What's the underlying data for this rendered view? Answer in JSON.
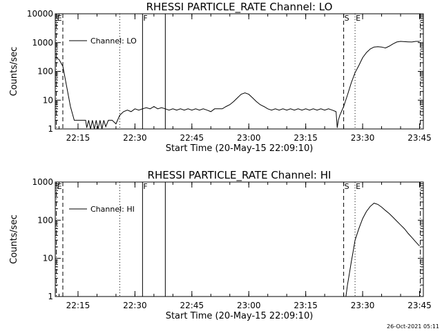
{
  "chart_data": [
    {
      "type": "line",
      "title": "RHESSI PARTICLE_RATE Channel: LO",
      "xlabel": "Start Time (20-May-15 22:09:10)",
      "ylabel": "Counts/sec",
      "y_scale": "log",
      "xlim": [
        0,
        97
      ],
      "ylim": [
        1,
        10000
      ],
      "x_ticks": [
        6,
        21,
        36,
        51,
        66,
        81,
        96
      ],
      "x_tick_labels": [
        "22:15",
        "22:30",
        "22:45",
        "23:00",
        "23:15",
        "23:30",
        "23:45"
      ],
      "y_ticks": [
        1,
        10,
        100,
        1000,
        10000
      ],
      "y_tick_labels": [
        "1",
        "10",
        "100",
        "1000",
        "10000"
      ],
      "legend": {
        "position": "top-left",
        "entries": [
          "Channel: LO"
        ]
      },
      "markers": [
        {
          "x": 0.3,
          "label": "E",
          "style": "dashdot"
        },
        {
          "x": 2,
          "label": "",
          "style": "dashed"
        },
        {
          "x": 17,
          "label": "",
          "style": "dotted"
        },
        {
          "x": 23,
          "label": "F",
          "style": "solid"
        },
        {
          "x": 29,
          "label": "",
          "style": "solid"
        },
        {
          "x": 76,
          "label": "S",
          "style": "dashed"
        },
        {
          "x": 79,
          "label": "E",
          "style": "dotted"
        },
        {
          "x": 96.2,
          "label": "",
          "style": "dashdot"
        }
      ],
      "series": [
        {
          "name": "Channel: LO",
          "points": [
            [
              0,
              300
            ],
            [
              1,
              260
            ],
            [
              2,
              150
            ],
            [
              3,
              30
            ],
            [
              4,
              6
            ],
            [
              5,
              2
            ],
            [
              6,
              2
            ],
            [
              8,
              2
            ],
            [
              8.3,
              1.1
            ],
            [
              8.8,
              2
            ],
            [
              9.3,
              1
            ],
            [
              9.8,
              2
            ],
            [
              10.3,
              1
            ],
            [
              10.8,
              2
            ],
            [
              11.3,
              1
            ],
            [
              11.8,
              2
            ],
            [
              12.3,
              1
            ],
            [
              12.8,
              2
            ],
            [
              13.3,
              1.2
            ],
            [
              14,
              2
            ],
            [
              15,
              2
            ],
            [
              16,
              1.5
            ],
            [
              17,
              3
            ],
            [
              18,
              4
            ],
            [
              19,
              4.5
            ],
            [
              20,
              4
            ],
            [
              21,
              5
            ],
            [
              22,
              4.5
            ],
            [
              23,
              5
            ],
            [
              24,
              5.5
            ],
            [
              25,
              5
            ],
            [
              26,
              6
            ],
            [
              27,
              5
            ],
            [
              28,
              5.5
            ],
            [
              29,
              5
            ],
            [
              30,
              4.5
            ],
            [
              31,
              5
            ],
            [
              32,
              4.5
            ],
            [
              33,
              5
            ],
            [
              34,
              4.5
            ],
            [
              35,
              5
            ],
            [
              36,
              4.5
            ],
            [
              37,
              5
            ],
            [
              38,
              4.5
            ],
            [
              39,
              5
            ],
            [
              40,
              4.5
            ],
            [
              41,
              4
            ],
            [
              42,
              5
            ],
            [
              43,
              5
            ],
            [
              44,
              5
            ],
            [
              45,
              6
            ],
            [
              46,
              7
            ],
            [
              47,
              9
            ],
            [
              48,
              12
            ],
            [
              49,
              16
            ],
            [
              50,
              18
            ],
            [
              51,
              16
            ],
            [
              52,
              12
            ],
            [
              53,
              9
            ],
            [
              54,
              7
            ],
            [
              55,
              6
            ],
            [
              56,
              5
            ],
            [
              57,
              4.5
            ],
            [
              58,
              5
            ],
            [
              59,
              4.5
            ],
            [
              60,
              5
            ],
            [
              61,
              4.5
            ],
            [
              62,
              5
            ],
            [
              63,
              4.5
            ],
            [
              64,
              5
            ],
            [
              65,
              4.5
            ],
            [
              66,
              5
            ],
            [
              67,
              4.5
            ],
            [
              68,
              5
            ],
            [
              69,
              4.5
            ],
            [
              70,
              5
            ],
            [
              71,
              4.5
            ],
            [
              72,
              5
            ],
            [
              73,
              4.5
            ],
            [
              74,
              4
            ],
            [
              74.3,
              1.1
            ],
            [
              74.6,
              2
            ],
            [
              75,
              3
            ],
            [
              76,
              6
            ],
            [
              77,
              15
            ],
            [
              78,
              40
            ],
            [
              79,
              90
            ],
            [
              80,
              160
            ],
            [
              81,
              300
            ],
            [
              82,
              450
            ],
            [
              83,
              600
            ],
            [
              84,
              700
            ],
            [
              85,
              720
            ],
            [
              86,
              700
            ],
            [
              87,
              650
            ],
            [
              88,
              750
            ],
            [
              89,
              900
            ],
            [
              90,
              1050
            ],
            [
              91,
              1100
            ],
            [
              92,
              1080
            ],
            [
              93,
              1060
            ],
            [
              94,
              1050
            ],
            [
              95,
              1100
            ],
            [
              96,
              1100
            ]
          ]
        }
      ]
    },
    {
      "type": "line",
      "title": "RHESSI PARTICLE_RATE Channel: HI",
      "xlabel": "Start Time (20-May-15 22:09:10)",
      "ylabel": "Counts/sec",
      "y_scale": "log",
      "xlim": [
        0,
        97
      ],
      "ylim": [
        1,
        1000
      ],
      "x_ticks": [
        6,
        21,
        36,
        51,
        66,
        81,
        96
      ],
      "x_tick_labels": [
        "22:15",
        "22:30",
        "22:45",
        "23:00",
        "23:15",
        "23:30",
        "23:45"
      ],
      "y_ticks": [
        1,
        10,
        100,
        1000
      ],
      "y_tick_labels": [
        "1",
        "10",
        "100",
        "1000"
      ],
      "legend": {
        "position": "top-left",
        "entries": [
          "Channel: HI"
        ]
      },
      "markers": [
        {
          "x": 0.3,
          "label": "E",
          "style": "dashdot"
        },
        {
          "x": 2,
          "label": "",
          "style": "dashed"
        },
        {
          "x": 17,
          "label": "",
          "style": "dotted"
        },
        {
          "x": 23,
          "label": "F",
          "style": "solid"
        },
        {
          "x": 29,
          "label": "",
          "style": "solid"
        },
        {
          "x": 76,
          "label": "S",
          "style": "dashed"
        },
        {
          "x": 79,
          "label": "E",
          "style": "dotted"
        },
        {
          "x": 96.2,
          "label": "",
          "style": "dashdot"
        }
      ],
      "series": [
        {
          "name": "Channel: HI",
          "points": [
            [
              76.6,
              1
            ],
            [
              77,
              2
            ],
            [
              77.5,
              4
            ],
            [
              78,
              8
            ],
            [
              78.5,
              15
            ],
            [
              79,
              30
            ],
            [
              80,
              60
            ],
            [
              81,
              110
            ],
            [
              82,
              170
            ],
            [
              83,
              230
            ],
            [
              84,
              280
            ],
            [
              85,
              260
            ],
            [
              86,
              220
            ],
            [
              87,
              180
            ],
            [
              88,
              150
            ],
            [
              89,
              120
            ],
            [
              90,
              95
            ],
            [
              91,
              75
            ],
            [
              92,
              60
            ],
            [
              93,
              45
            ],
            [
              94,
              35
            ],
            [
              95,
              27
            ],
            [
              96,
              21
            ]
          ]
        }
      ]
    }
  ],
  "footer": {
    "timestamp": "26-Oct-2021 05:11"
  }
}
